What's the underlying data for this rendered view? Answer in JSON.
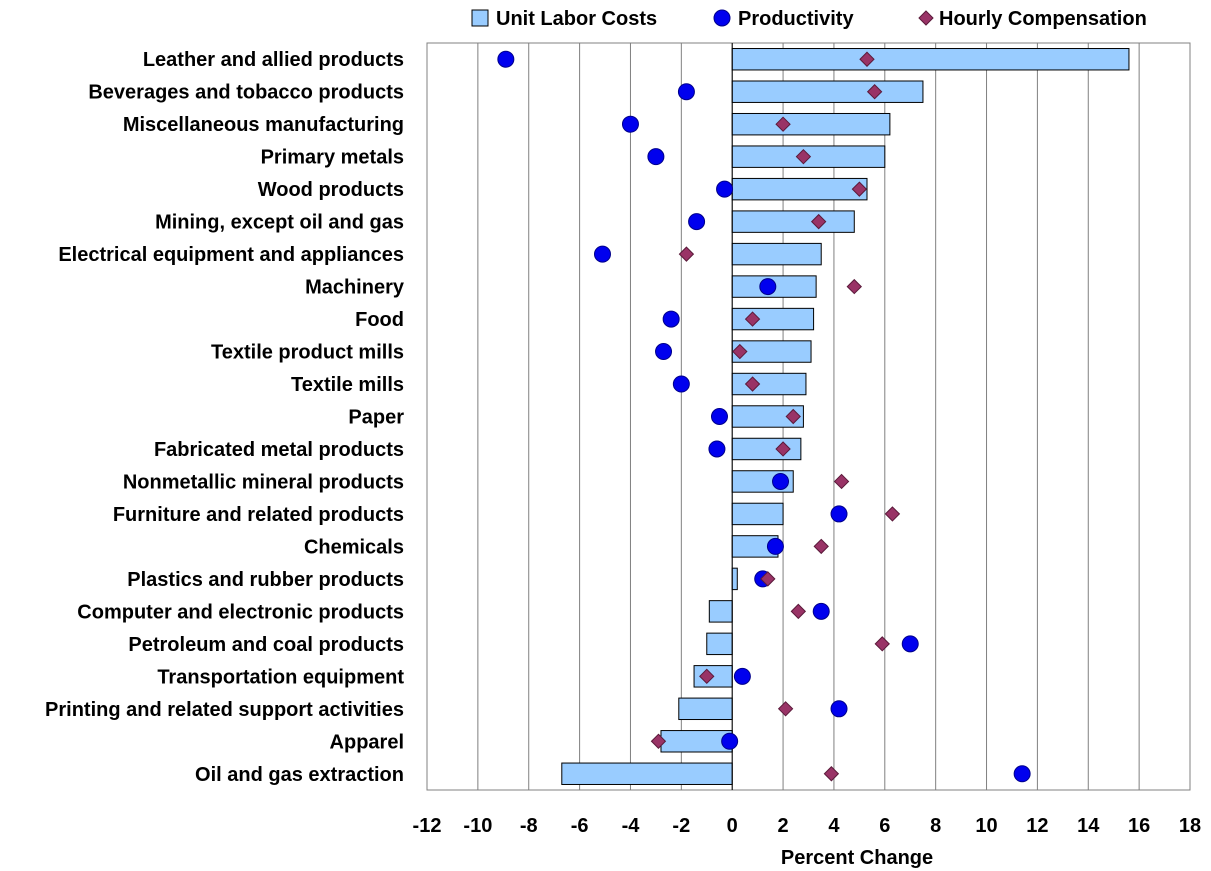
{
  "chart_data": {
    "type": "bar",
    "orientation": "horizontal",
    "categories": [
      "Leather and allied products",
      "Beverages and tobacco products",
      "Miscellaneous manufacturing",
      "Primary metals",
      "Wood products",
      "Mining, except oil and gas",
      "Electrical equipment and appliances",
      "Machinery",
      "Food",
      "Textile product mills",
      "Textile mills",
      "Paper",
      "Fabricated metal products",
      "Nonmetallic mineral products",
      "Furniture and related products",
      "Chemicals",
      "Plastics and rubber products",
      "Computer and electronic products",
      "Petroleum and coal products",
      "Transportation equipment",
      "Printing and related support activities",
      "Apparel",
      "Oil and gas extraction"
    ],
    "series": [
      {
        "name": "Unit Labor Costs",
        "kind": "bar",
        "color": "#99ccff",
        "values": [
          15.6,
          7.5,
          6.2,
          6.0,
          5.3,
          4.8,
          3.5,
          3.3,
          3.2,
          3.1,
          2.9,
          2.8,
          2.7,
          2.4,
          2.0,
          1.8,
          0.2,
          -0.9,
          -1.0,
          -1.5,
          -2.1,
          -2.8,
          -6.7
        ]
      },
      {
        "name": "Productivity",
        "kind": "circle",
        "color": "#0000ee",
        "values": [
          -8.9,
          -1.8,
          -4.0,
          -3.0,
          -0.3,
          -1.4,
          -5.1,
          1.4,
          -2.4,
          -2.7,
          -2.0,
          -0.5,
          -0.6,
          1.9,
          4.2,
          1.7,
          1.2,
          3.5,
          7.0,
          0.4,
          4.2,
          -0.1,
          11.4
        ]
      },
      {
        "name": "Hourly Compensation",
        "kind": "diamond",
        "color": "#993366",
        "values": [
          5.3,
          5.6,
          2.0,
          2.8,
          5.0,
          3.4,
          -1.8,
          4.8,
          0.8,
          0.3,
          0.8,
          2.4,
          2.0,
          4.3,
          6.3,
          3.5,
          1.4,
          2.6,
          5.9,
          -1.0,
          2.1,
          -2.9,
          3.9
        ]
      }
    ],
    "xlabel": "Percent Change",
    "xlim": [
      -12,
      18
    ],
    "xticks": [
      -12,
      -10,
      -8,
      -6,
      -4,
      -2,
      0,
      2,
      4,
      6,
      8,
      10,
      12,
      14,
      16,
      18
    ],
    "grid": "vertical",
    "legend_position": "top"
  }
}
